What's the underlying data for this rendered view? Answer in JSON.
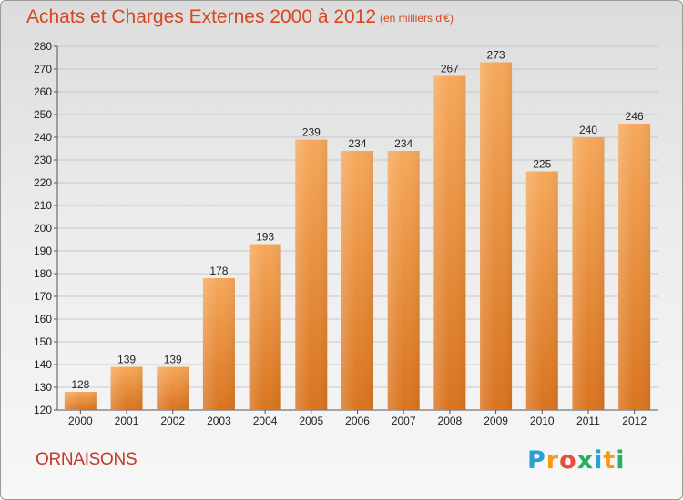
{
  "title": "Achats et Charges Externes 2000 à 2012",
  "subtitle": "(en milliers d'€)",
  "town": "ORNAISONS",
  "logo": {
    "letters": [
      {
        "char": "P",
        "color": "#2a9fd6"
      },
      {
        "char": "r",
        "color": "#f39c12"
      },
      {
        "char": "o",
        "color": "#e74c3c"
      },
      {
        "char": "x",
        "color": "#27ae60"
      },
      {
        "char": "i",
        "color": "#2a9fd6"
      },
      {
        "char": "t",
        "color": "#f39c12"
      },
      {
        "char": "i",
        "color": "#27ae60"
      }
    ]
  },
  "colors": {
    "bar_light": "#f6a85a",
    "bar_dark": "#d9741f",
    "title": "#d8471d",
    "grid": "#c8c8c8"
  },
  "chart_data": {
    "type": "bar",
    "categories": [
      "2000",
      "2001",
      "2002",
      "2003",
      "2004",
      "2005",
      "2006",
      "2007",
      "2008",
      "2009",
      "2010",
      "2011",
      "2012"
    ],
    "values": [
      128,
      139,
      139,
      178,
      193,
      239,
      234,
      234,
      267,
      273,
      225,
      240,
      246
    ],
    "ylim": [
      120,
      280
    ],
    "yticks": [
      120,
      130,
      140,
      150,
      160,
      170,
      180,
      190,
      200,
      210,
      220,
      230,
      240,
      250,
      260,
      270,
      280
    ],
    "grid": true
  }
}
